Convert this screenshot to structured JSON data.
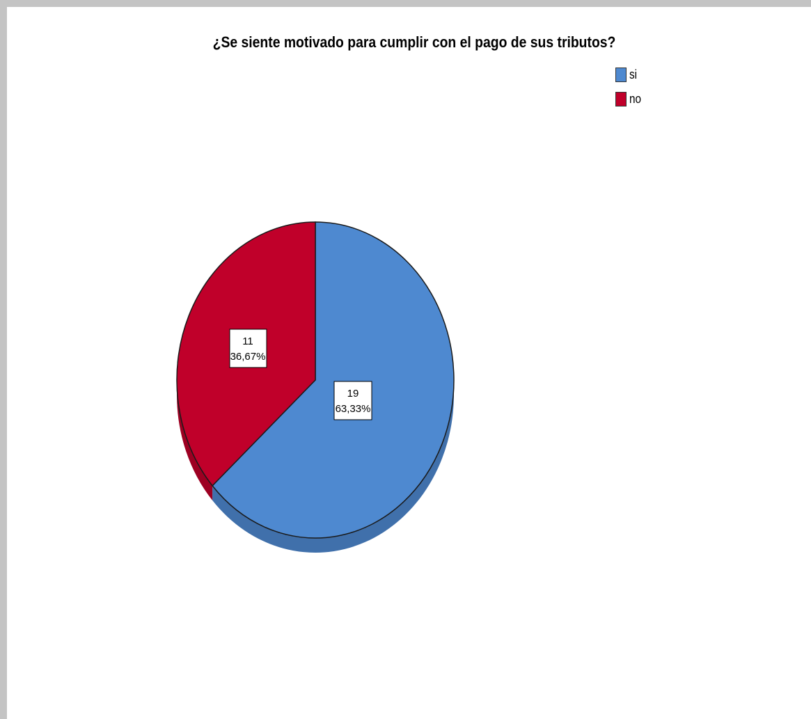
{
  "chart_data": {
    "type": "pie",
    "title": "¿Se siente motivado para cumplir con el pago de sus tributos?",
    "slices": [
      {
        "label": "si",
        "value": 19,
        "percent_label": "63,33%",
        "color": "#4e89d0"
      },
      {
        "label": "no",
        "value": 11,
        "percent_label": "36,67%",
        "color": "#c0002a"
      }
    ],
    "legend_position": "top-right"
  },
  "legend": {
    "items": [
      {
        "label": "si",
        "color": "#4e89d0"
      },
      {
        "label": "no",
        "color": "#c0002a"
      }
    ]
  },
  "labels": {
    "si_count": "19",
    "si_percent": "63,33%",
    "no_count": "11",
    "no_percent": "36,67%"
  }
}
